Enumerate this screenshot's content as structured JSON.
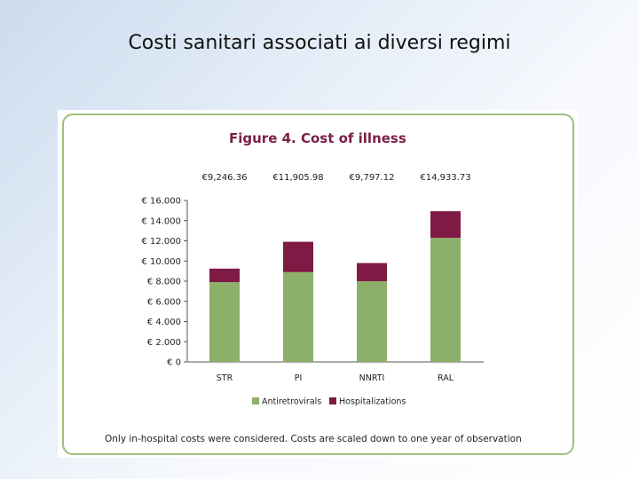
{
  "slide": {
    "title": "Costi sanitari associati ai diversi regimi"
  },
  "chart_data": {
    "type": "bar",
    "stacked": true,
    "title": "Figure 4. Cost of illness",
    "categories": [
      "STR",
      "PI",
      "NNRTI",
      "RAL"
    ],
    "totals_labels": [
      "€9,246.36",
      "€11,905.98",
      "€9,797.12",
      "€14,933.73"
    ],
    "series": [
      {
        "name": "Antiretrovirals",
        "color": "#8cb06a",
        "values": [
          7900,
          8900,
          8000,
          12300
        ]
      },
      {
        "name": "Hospitalizations",
        "color": "#7e1a44",
        "values": [
          1346,
          3006,
          1797,
          2634
        ]
      }
    ],
    "ylim": [
      0,
      16000
    ],
    "yticks": [
      {
        "value": 16000,
        "label": "€ 16.000"
      },
      {
        "value": 14000,
        "label": "€ 14.000"
      },
      {
        "value": 12000,
        "label": "€ 12.000"
      },
      {
        "value": 10000,
        "label": "€ 10.000"
      },
      {
        "value": 8000,
        "label": "€ 8.000"
      },
      {
        "value": 6000,
        "label": "€ 6.000"
      },
      {
        "value": 4000,
        "label": "€ 4.000"
      },
      {
        "value": 2000,
        "label": "€ 2.000"
      },
      {
        "value": 0,
        "label": "€ 0"
      }
    ],
    "grid": false,
    "legend_position": "bottom",
    "footnote": "Only in-hospital costs were considered. Costs are scaled down to one year of observation"
  }
}
